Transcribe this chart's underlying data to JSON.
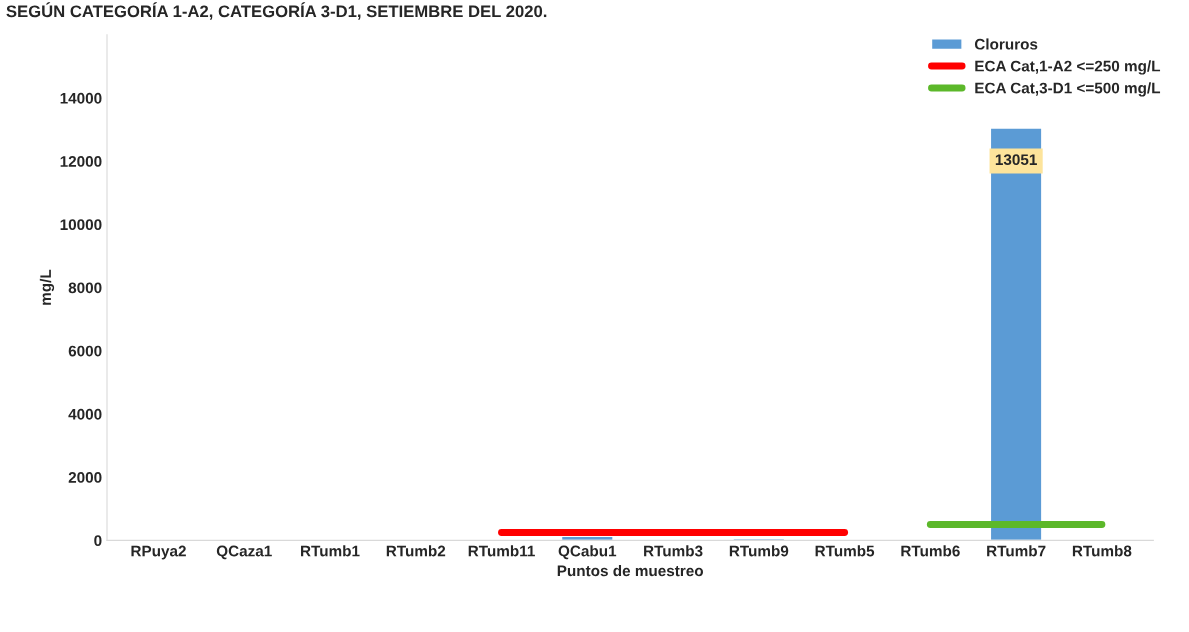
{
  "chart_data": {
    "type": "bar",
    "title": "SEGÚN CATEGORÍA 1-A2, CATEGORÍA 3-D1, SETIEMBRE DEL 2020.",
    "xlabel": "Puntos de muestreo",
    "ylabel": "mg/L",
    "categories": [
      "RPuya2",
      "QCaza1",
      "RTumb1",
      "RTumb2",
      "RTumb11",
      "QCabu1",
      "RTumb3",
      "RTumb9",
      "RTumb5",
      "RTumb6",
      "RTumb7",
      "RTumb8"
    ],
    "series": [
      {
        "name": "Cloruros",
        "color": "#5b9bd5",
        "values": [
          null,
          null,
          null,
          null,
          null,
          130,
          null,
          60,
          null,
          null,
          13051,
          null
        ],
        "value_labels": [
          null,
          null,
          null,
          null,
          null,
          null,
          null,
          null,
          null,
          null,
          "13051",
          null
        ]
      },
      {
        "name": "ECA Cat,1-A2 <=250 mg/L",
        "type": "line",
        "color": "#ff0000",
        "values": [
          null,
          null,
          null,
          null,
          250,
          250,
          250,
          250,
          250,
          null,
          null,
          null
        ]
      },
      {
        "name": "ECA Cat,3-D1 <=500 mg/L",
        "type": "line",
        "color": "#5cb82a",
        "values": [
          null,
          null,
          null,
          null,
          null,
          null,
          null,
          null,
          null,
          500,
          500,
          500
        ]
      }
    ],
    "ylim": [
      0,
      16000
    ],
    "yticks": [
      0,
      2000,
      4000,
      6000,
      8000,
      10000,
      12000,
      14000
    ],
    "grid": false,
    "legend": "top right"
  }
}
